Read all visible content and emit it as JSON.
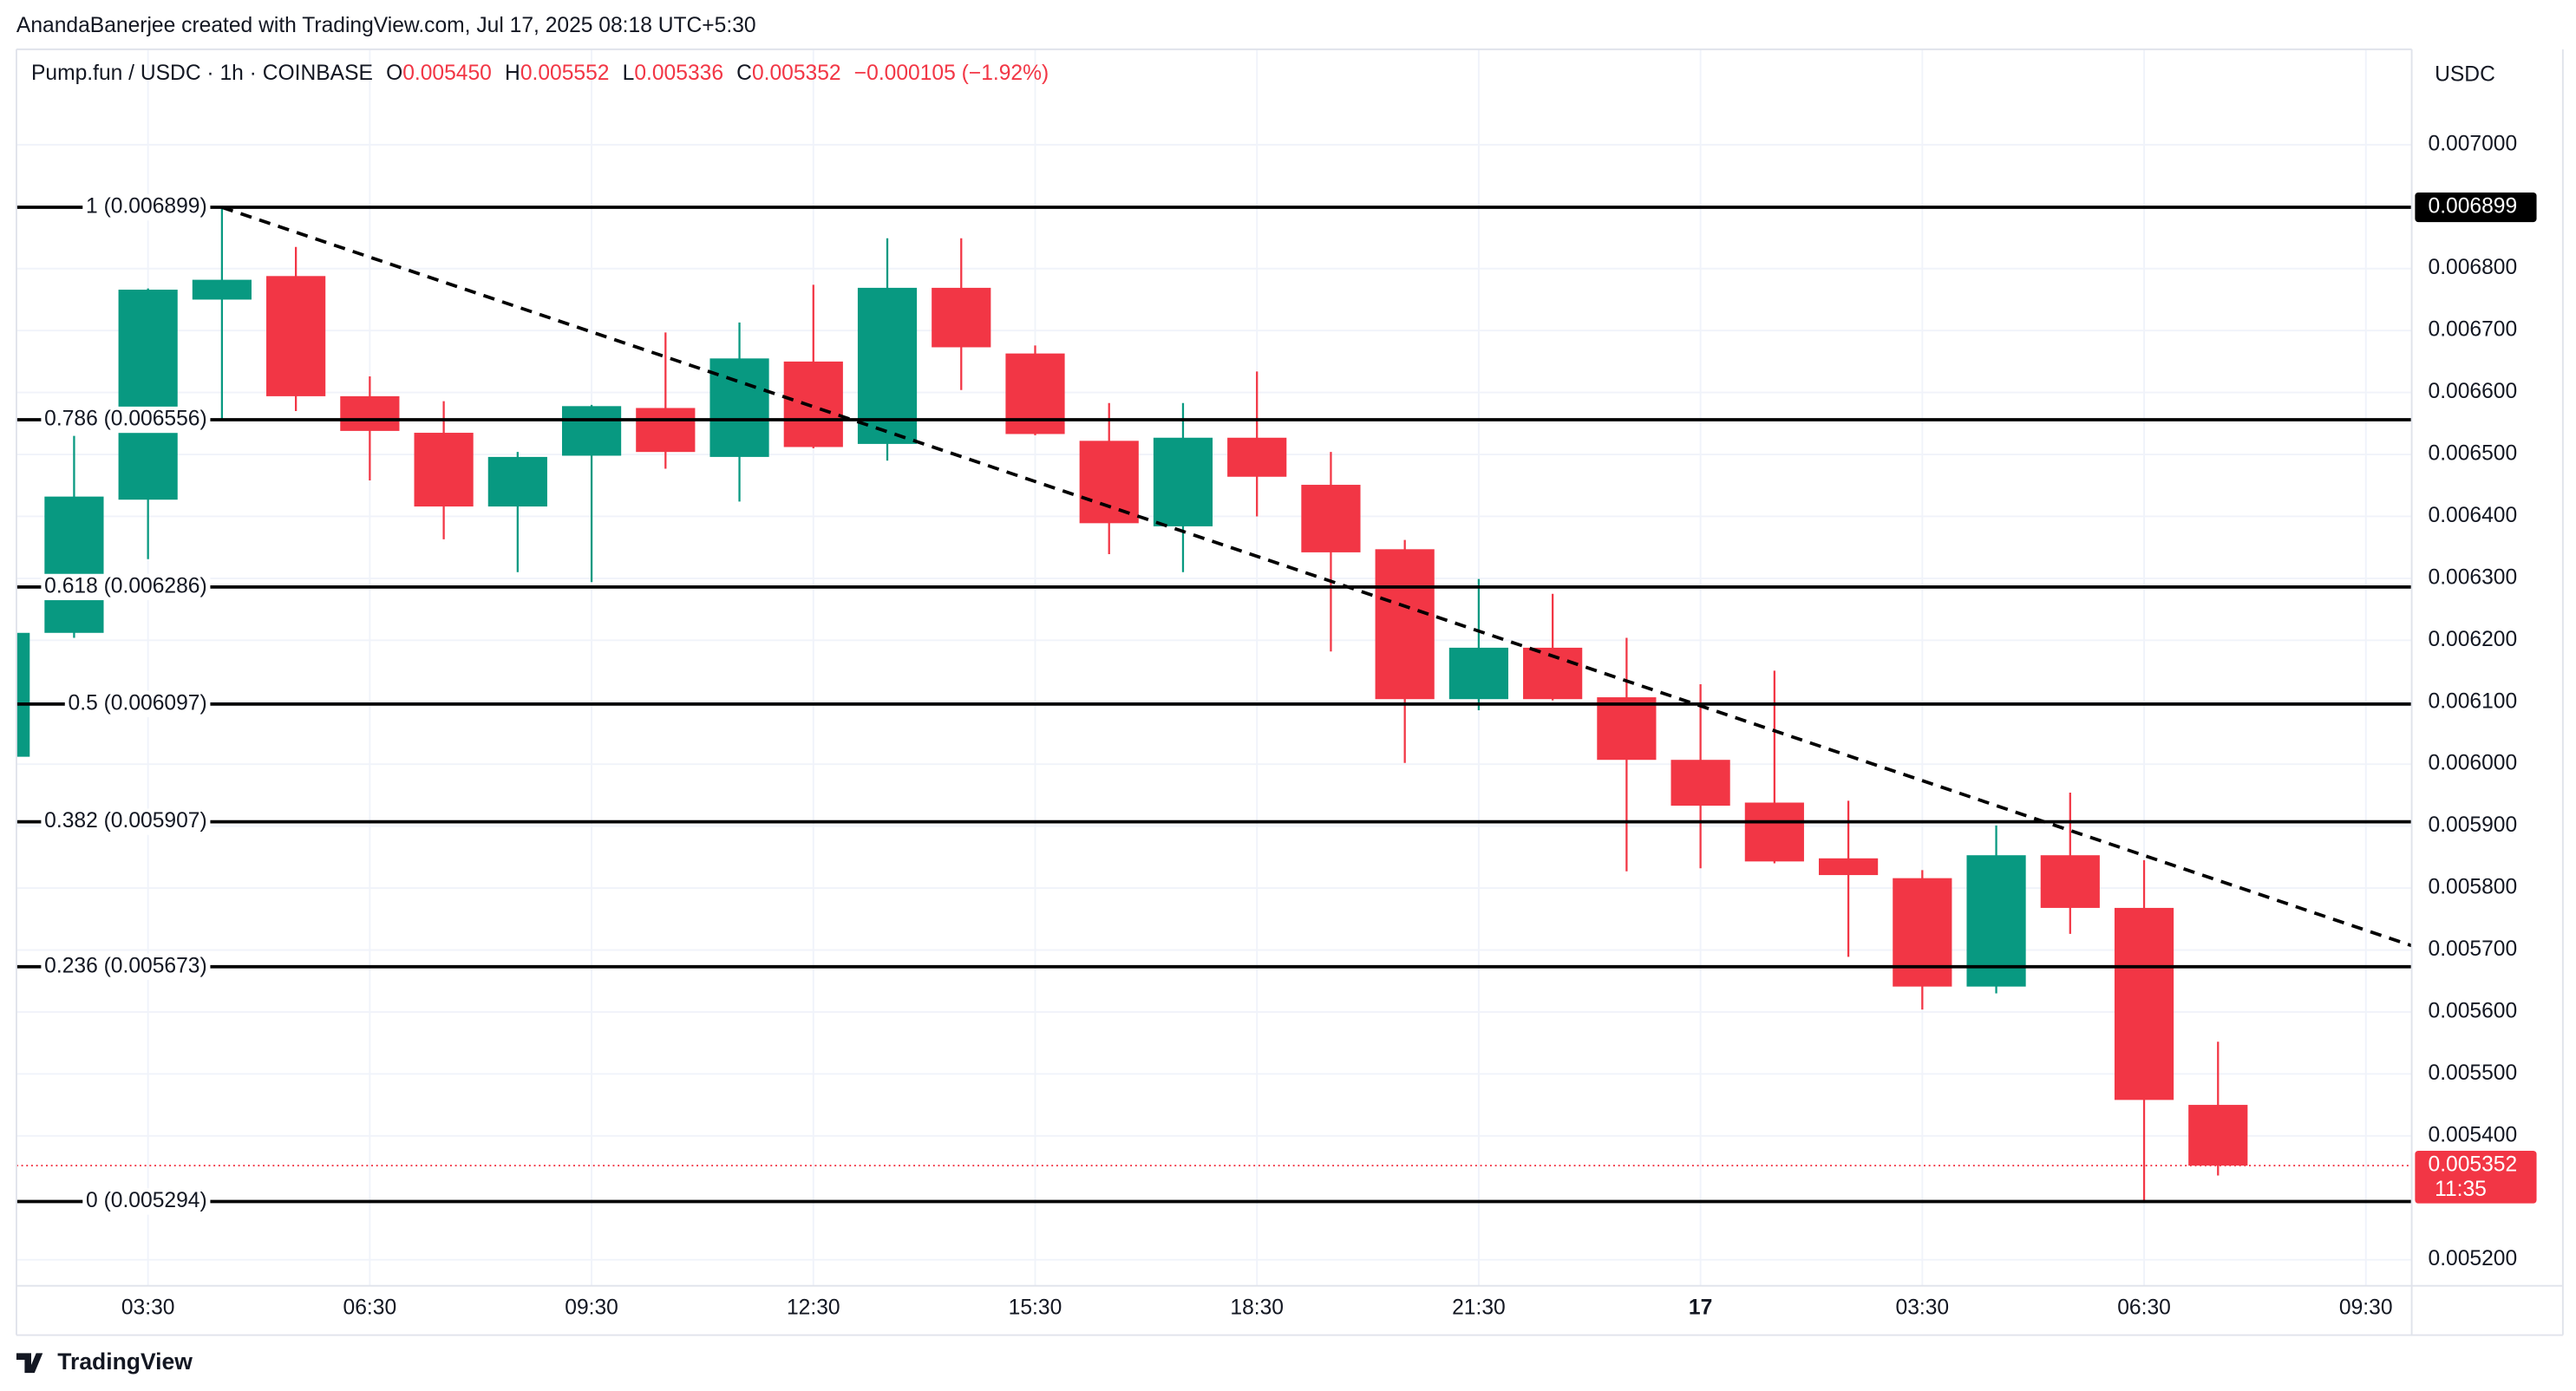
{
  "chart_data": {
    "type": "candlestick",
    "attribution": "AnandaBanerjee created with TradingView.com, Jul 17, 2025 08:18 UTC+5:30",
    "title": "Pump.fun / USDC · 1h · COINBASE",
    "ohlc_legend": [
      {
        "key": "O",
        "text": "0.005450"
      },
      {
        "key": "H",
        "text": "0.005552"
      },
      {
        "key": "L",
        "text": "0.005336"
      },
      {
        "key": "C",
        "text": "0.005352"
      }
    ],
    "change": "−0.000105 (−1.92%)",
    "y_axis_label": "USDC",
    "logo": "TradingView",
    "up_color": "#089981",
    "down_color": "#f23645",
    "grid": true,
    "xlim": [
      1.72,
      34.12
    ],
    "ylim": [
      0.005158,
      0.007154
    ],
    "xticks": [
      {
        "value": 3.5,
        "label": "03:30"
      },
      {
        "value": 6.5,
        "label": "06:30"
      },
      {
        "value": 9.5,
        "label": "09:30"
      },
      {
        "value": 12.5,
        "label": "12:30"
      },
      {
        "value": 15.5,
        "label": "15:30"
      },
      {
        "value": 18.5,
        "label": "18:30"
      },
      {
        "value": 21.5,
        "label": "21:30"
      },
      {
        "value": 24.5,
        "label": "17"
      },
      {
        "value": 27.5,
        "label": "03:30"
      },
      {
        "value": 30.5,
        "label": "06:30"
      },
      {
        "value": 33.5,
        "label": "09:30"
      }
    ],
    "yticks": [
      {
        "value": 0.0052,
        "label": "0.005200"
      },
      {
        "value": 0.0054,
        "label": "0.005400"
      },
      {
        "value": 0.0055,
        "label": "0.005500"
      },
      {
        "value": 0.0056,
        "label": "0.005600"
      },
      {
        "value": 0.0057,
        "label": "0.005700"
      },
      {
        "value": 0.0058,
        "label": "0.005800"
      },
      {
        "value": 0.0059,
        "label": "0.005900"
      },
      {
        "value": 0.006,
        "label": "0.006000"
      },
      {
        "value": 0.0061,
        "label": "0.006100"
      },
      {
        "value": 0.0062,
        "label": "0.006200"
      },
      {
        "value": 0.0063,
        "label": "0.006300"
      },
      {
        "value": 0.0064,
        "label": "0.006400"
      },
      {
        "value": 0.0065,
        "label": "0.006500"
      },
      {
        "value": 0.0066,
        "label": "0.006600"
      },
      {
        "value": 0.0067,
        "label": "0.006700"
      },
      {
        "value": 0.0068,
        "label": "0.006800"
      },
      {
        "value": 0.007,
        "label": "0.007000"
      }
    ],
    "x": [
      1.5,
      2.5,
      3.5,
      4.5,
      5.5,
      6.5,
      7.5,
      8.5,
      9.5,
      10.5,
      11.5,
      12.5,
      13.5,
      14.5,
      15.5,
      16.5,
      17.5,
      18.5,
      19.5,
      20.5,
      21.5,
      22.5,
      23.5,
      24.5,
      25.5,
      26.5,
      27.5,
      28.5,
      29.5,
      30.5,
      31.5
    ],
    "open": [
      0.006012,
      0.006212,
      0.006427,
      0.00675,
      0.006788,
      0.006594,
      0.006535,
      0.006416,
      0.006498,
      0.006575,
      0.006496,
      0.00665,
      0.006517,
      0.006769,
      0.006663,
      0.006522,
      0.006384,
      0.006527,
      0.006451,
      0.006347,
      0.006105,
      0.006188,
      0.006108,
      0.006007,
      0.005938,
      0.005848,
      0.005816,
      0.005641,
      0.005853,
      0.005768,
      0.00545
    ],
    "high": [
      0.006212,
      0.00653,
      0.006768,
      0.006899,
      0.006835,
      0.006626,
      0.006586,
      0.006504,
      0.00658,
      0.006697,
      0.006713,
      0.006774,
      0.006849,
      0.006849,
      0.006676,
      0.006583,
      0.006583,
      0.006634,
      0.006504,
      0.006362,
      0.006299,
      0.006275,
      0.006204,
      0.006129,
      0.006151,
      0.005941,
      0.005829,
      0.005901,
      0.005954,
      0.005845,
      0.005552
    ],
    "low": [
      0.006012,
      0.006204,
      0.006331,
      0.006557,
      0.00657,
      0.006458,
      0.006363,
      0.00631,
      0.006294,
      0.006477,
      0.006424,
      0.00651,
      0.00649,
      0.006604,
      0.006531,
      0.006339,
      0.00631,
      0.0064,
      0.006182,
      0.006002,
      0.006087,
      0.006103,
      0.005827,
      0.005832,
      0.00584,
      0.005689,
      0.005604,
      0.00563,
      0.005726,
      0.005294,
      0.005336
    ],
    "close": [
      0.006212,
      0.006432,
      0.006766,
      0.006782,
      0.006594,
      0.006538,
      0.006416,
      0.006496,
      0.006578,
      0.006504,
      0.006655,
      0.006512,
      0.006769,
      0.006673,
      0.006533,
      0.006389,
      0.006527,
      0.006464,
      0.006342,
      0.006105,
      0.006188,
      0.006105,
      0.006007,
      0.005933,
      0.005843,
      0.005821,
      0.005641,
      0.005853,
      0.005768,
      0.005458,
      0.005352
    ],
    "fib_levels": [
      {
        "value": 0.006899,
        "label": "1 (0.006899)"
      },
      {
        "value": 0.006556,
        "label": "0.786 (0.006556)"
      },
      {
        "value": 0.006286,
        "label": "0.618 (0.006286)"
      },
      {
        "value": 0.006097,
        "label": "0.5 (0.006097)"
      },
      {
        "value": 0.005907,
        "label": "0.382 (0.005907)"
      },
      {
        "value": 0.005673,
        "label": "0.236 (0.005673)"
      },
      {
        "value": 0.005294,
        "label": "0 (0.005294)"
      }
    ],
    "fib_axis_label": {
      "value": 0.006899,
      "label": "0.006899"
    },
    "trendline": {
      "x": [
        4.5,
        34.12
      ],
      "y": [
        0.006899,
        0.005707
      ]
    },
    "last_price": {
      "value": 0.005352,
      "label": "0.005352"
    },
    "countdown": "11:35"
  }
}
